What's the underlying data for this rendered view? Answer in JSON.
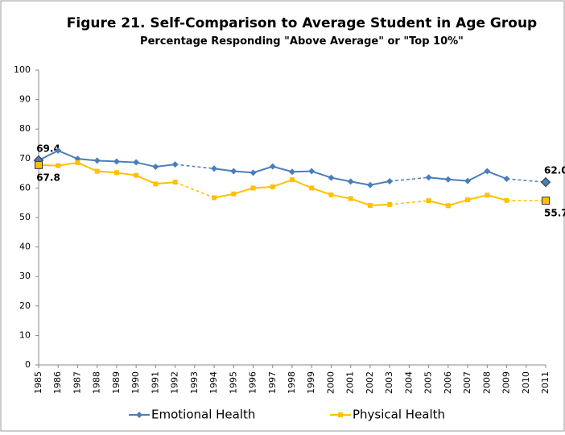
{
  "chart_data": {
    "type": "line",
    "title": "Figure 21. Self-Comparison to Average Student in Age Group",
    "subtitle": "Percentage Responding \"Above Average\" or \"Top 10%\"",
    "categories": [
      "1985",
      "1986",
      "1987",
      "1988",
      "1989",
      "1990",
      "1991",
      "1992",
      "1993",
      "1994",
      "1995",
      "1996",
      "1997",
      "1998",
      "1999",
      "2000",
      "2001",
      "2002",
      "2003",
      "2004",
      "2005",
      "2006",
      "2007",
      "2008",
      "2009",
      "2010",
      "2011"
    ],
    "series": [
      {
        "name": "Emotional Health",
        "color": "#4a7ebb",
        "marker": "diamond",
        "values": [
          69.4,
          72.7,
          69.9,
          69.3,
          69.0,
          68.7,
          67.2,
          68.0,
          null,
          66.6,
          65.7,
          65.2,
          67.3,
          65.5,
          65.7,
          63.5,
          62.2,
          61.0,
          62.3,
          null,
          63.6,
          62.9,
          62.4,
          65.7,
          63.1,
          null,
          62.0
        ],
        "value_labels": [
          "69.4",
          null,
          null,
          null,
          null,
          null,
          null,
          null,
          null,
          null,
          null,
          null,
          null,
          null,
          null,
          null,
          null,
          null,
          null,
          null,
          null,
          null,
          null,
          null,
          null,
          null,
          "62.0"
        ]
      },
      {
        "name": "Physical Health",
        "color": "#ffc000",
        "marker": "square",
        "values": [
          67.8,
          67.6,
          68.6,
          65.7,
          65.2,
          64.3,
          61.4,
          62.0,
          null,
          56.7,
          58.0,
          60.0,
          60.4,
          62.8,
          60.0,
          57.7,
          56.4,
          54.1,
          54.4,
          null,
          55.7,
          54.0,
          56.0,
          57.6,
          55.8,
          null,
          55.7
        ],
        "value_labels": [
          "67.8",
          null,
          null,
          null,
          null,
          null,
          null,
          null,
          null,
          null,
          null,
          null,
          null,
          null,
          null,
          null,
          null,
          null,
          null,
          null,
          null,
          null,
          null,
          null,
          null,
          null,
          "55.7"
        ]
      }
    ],
    "ylim": [
      0,
      100
    ],
    "yticks": [
      0,
      10,
      20,
      30,
      40,
      50,
      60,
      70,
      80,
      90,
      100
    ],
    "grid": false,
    "legend": "bottom",
    "bridge_gaps": true
  }
}
